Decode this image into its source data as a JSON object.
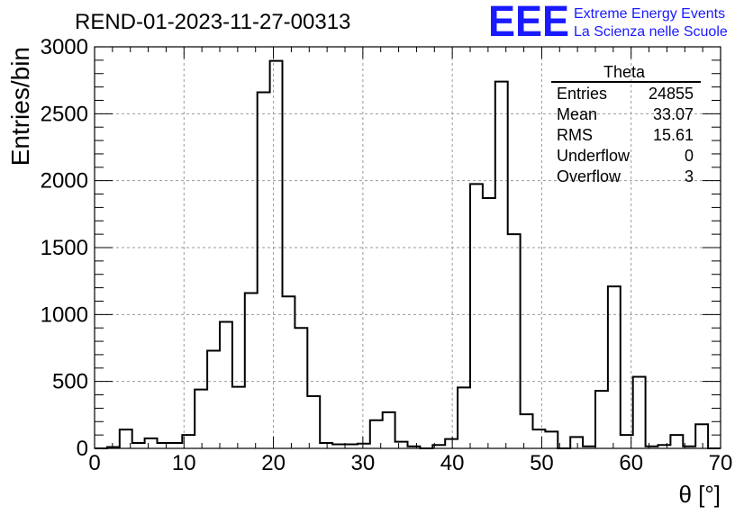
{
  "brand": {
    "logo_text": "EEE",
    "line1": "Extreme Energy Events",
    "line2": "La Scienza nelle Scuole",
    "color": "#1a1aff"
  },
  "stats": {
    "title": "Theta",
    "rows": [
      {
        "label": "Entries",
        "value": "24855"
      },
      {
        "label": "Mean",
        "value": "33.07"
      },
      {
        "label": "RMS",
        "value": "15.61"
      },
      {
        "label": "Underflow",
        "value": "0"
      },
      {
        "label": "Overflow",
        "value": "3"
      }
    ]
  },
  "chart_data": {
    "type": "histogram",
    "title": "REND-01-2023-11-27-00313",
    "xlabel": "θ [°]",
    "ylabel": "Entries/bin",
    "xlim": [
      0,
      70
    ],
    "ylim": [
      0,
      3000
    ],
    "grid": true,
    "grid_style": "dashed",
    "x_ticks": [
      0,
      10,
      20,
      30,
      40,
      50,
      60,
      70
    ],
    "y_ticks": [
      0,
      500,
      1000,
      1500,
      2000,
      2500,
      3000
    ],
    "bin_width": 1.4,
    "bin_edges_start": 0,
    "values": [
      0,
      10,
      140,
      40,
      75,
      40,
      40,
      100,
      440,
      730,
      945,
      460,
      1160,
      2660,
      2895,
      1135,
      900,
      390,
      40,
      30,
      30,
      35,
      210,
      270,
      50,
      15,
      0,
      25,
      70,
      455,
      1975,
      1870,
      2740,
      1600,
      255,
      140,
      125,
      0,
      85,
      15,
      430,
      1210,
      100,
      535,
      15,
      25,
      100,
      15,
      180,
      0
    ],
    "line_color": "#000000"
  }
}
